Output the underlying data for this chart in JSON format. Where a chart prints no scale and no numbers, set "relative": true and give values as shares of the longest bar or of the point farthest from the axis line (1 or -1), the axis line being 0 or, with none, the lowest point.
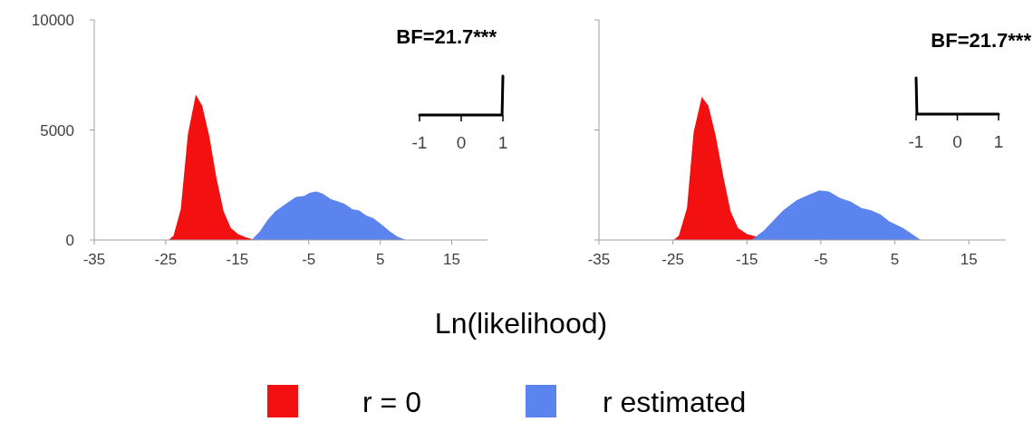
{
  "chart_data": [
    {
      "type": "area",
      "xlabel": "Ln(likelihood)",
      "xlim": [
        -35,
        20
      ],
      "xticks": [
        -35,
        -25,
        -15,
        -5,
        5,
        15
      ],
      "ylim": [
        0,
        10000
      ],
      "yticks": [
        0,
        5000,
        10000
      ],
      "legend": "bottom",
      "series": [
        {
          "name": "r = 0",
          "color": "#f21010",
          "x": [
            -24.6,
            -23.9,
            -22.9,
            -21.9,
            -20.8,
            -19.9,
            -18.9,
            -17.9,
            -16.9,
            -15.9,
            -14.9,
            -13.9,
            -12.5
          ],
          "values": [
            0,
            200,
            1400,
            4800,
            6600,
            6100,
            4700,
            2800,
            1300,
            550,
            270,
            130,
            0
          ]
        },
        {
          "name": "r estimated",
          "color": "#5b84ee",
          "x": [
            -13,
            -11.8,
            -10.8,
            -9.7,
            -8.2,
            -6.8,
            -5.7,
            -4.8,
            -3.9,
            -3,
            -1.9,
            -0.9,
            0,
            1.1,
            2,
            3.1,
            4,
            5.2,
            6.3,
            7.4,
            8.6
          ],
          "values": [
            0,
            400,
            900,
            1300,
            1650,
            1950,
            2000,
            2150,
            2200,
            2100,
            1850,
            1750,
            1650,
            1400,
            1350,
            1100,
            1000,
            700,
            400,
            150,
            0
          ]
        }
      ]
    },
    {
      "type": "line",
      "title": "BF=21.7***",
      "relative": true,
      "xlim": [
        -1,
        1
      ],
      "xticks": [
        -1,
        0,
        1
      ],
      "series": [
        {
          "color": "#000000",
          "x": [
            -1,
            0.98,
            1
          ],
          "values": [
            0,
            0,
            1
          ]
        }
      ]
    },
    {
      "type": "area",
      "xlim": [
        -35,
        20
      ],
      "xticks": [
        -35,
        -25,
        -15,
        -5,
        5,
        15
      ],
      "ylim": [
        0,
        10000
      ],
      "yticks": [
        {
          "value": 0,
          "label": null
        },
        {
          "value": 5000,
          "label": null
        },
        {
          "value": 10000,
          "label": null
        }
      ],
      "tick_labels": "x",
      "series": [
        {
          "color": "#f21010",
          "x": [
            -24.9,
            -24.2,
            -23.1,
            -22.2,
            -21.1,
            -20.2,
            -19.2,
            -18.2,
            -17.2,
            -16.2,
            -15,
            -13.7,
            -12.6
          ],
          "values": [
            0,
            200,
            1450,
            4900,
            6500,
            6100,
            4700,
            2900,
            1300,
            550,
            270,
            150,
            0
          ]
        },
        {
          "color": "#5b84ee",
          "x": [
            -14.4,
            -12.8,
            -11.5,
            -10.1,
            -8.3,
            -6.7,
            -5.2,
            -3.9,
            -2.4,
            -1,
            0.5,
            1.8,
            3.1,
            4.2,
            6.1,
            8.5
          ],
          "values": [
            0,
            400,
            850,
            1350,
            1800,
            2050,
            2250,
            2200,
            1900,
            1750,
            1450,
            1350,
            1150,
            850,
            550,
            0
          ]
        }
      ]
    },
    {
      "type": "line",
      "title": "BF=21.7***",
      "relative": true,
      "xlim": [
        -1,
        1
      ],
      "xticks": [
        -1,
        0,
        1
      ],
      "series": [
        {
          "color": "#000000",
          "x": [
            -1,
            -0.98,
            1
          ],
          "values": [
            1,
            0,
            0
          ]
        }
      ]
    }
  ]
}
